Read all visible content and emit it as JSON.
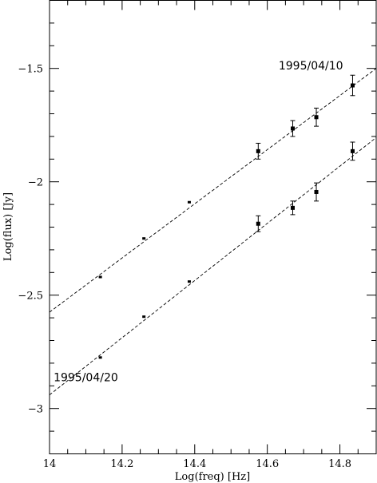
{
  "chart_data": {
    "type": "scatter",
    "title": "",
    "xlabel": "Log(freq) [Hz]",
    "ylabel": "Log(flux) [Jy]",
    "xlim": [
      14.0,
      14.9
    ],
    "ylim": [
      -3.2,
      -1.2
    ],
    "xticks": [
      14.0,
      14.2,
      14.4,
      14.6,
      14.8
    ],
    "xtick_labels": [
      "14",
      "14.2",
      "14.4",
      "14.6",
      "14.8"
    ],
    "yticks": [
      -3.0,
      -2.5,
      -2.0,
      -1.5
    ],
    "ytick_labels": [
      "−3",
      "−2.5",
      "−2",
      "−1.5"
    ],
    "grid": false,
    "series": [
      {
        "name": "1995/04/10",
        "x": [
          14.14,
          14.26,
          14.385,
          14.575,
          14.67,
          14.735,
          14.835
        ],
        "y": [
          -2.42,
          -2.25,
          -2.09,
          -1.865,
          -1.765,
          -1.715,
          -1.575
        ],
        "yerr": [
          0,
          0,
          0,
          0.035,
          0.035,
          0.04,
          0.045
        ],
        "fit": {
          "x": [
            14.0,
            14.9
          ],
          "y": [
            -2.575,
            -1.5
          ]
        }
      },
      {
        "name": "1995/04/20",
        "x": [
          14.14,
          14.26,
          14.385,
          14.575,
          14.67,
          14.735,
          14.835
        ],
        "y": [
          -2.775,
          -2.595,
          -2.44,
          -2.185,
          -2.115,
          -2.045,
          -1.865
        ],
        "yerr": [
          0,
          0,
          0,
          0.035,
          0.03,
          0.04,
          0.04
        ],
        "fit": {
          "x": [
            14.0,
            14.9
          ],
          "y": [
            -2.94,
            -1.805
          ]
        }
      }
    ],
    "annotations": [
      {
        "text": "1995/04/10",
        "x": 14.72,
        "y": -1.505
      },
      {
        "text": "1995/04/20",
        "x": 14.1,
        "y": -2.88
      }
    ]
  }
}
